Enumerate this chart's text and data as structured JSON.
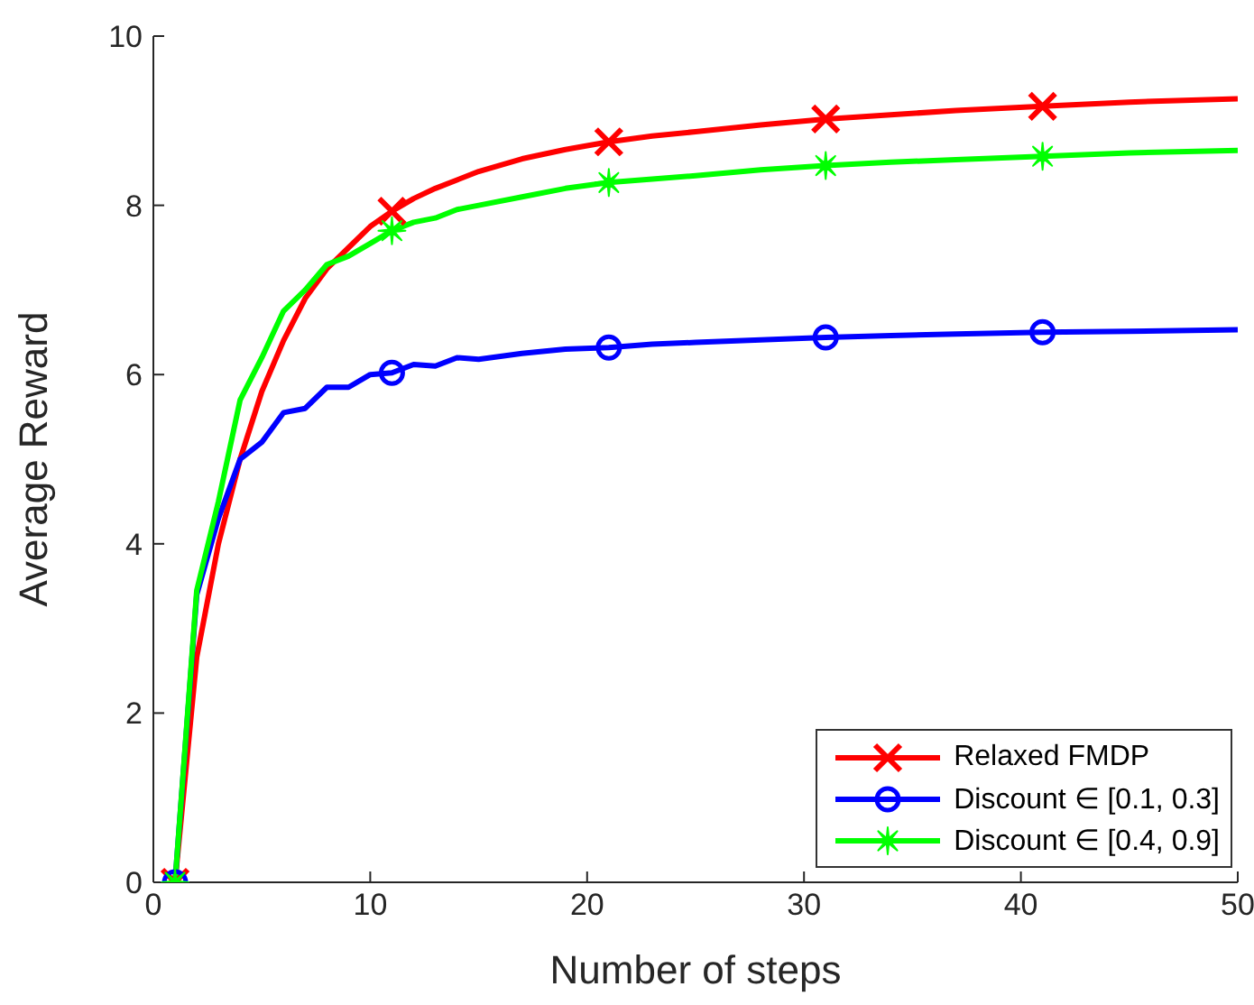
{
  "chart_data": {
    "type": "line",
    "xlabel": "Number of steps",
    "ylabel": "Average Reward",
    "x": [
      1,
      2,
      3,
      4,
      5,
      6,
      7,
      8,
      9,
      10,
      11,
      12,
      13,
      14,
      15,
      17,
      19,
      21,
      23,
      25,
      28,
      31,
      34,
      37,
      41,
      45,
      50
    ],
    "xlim": [
      0,
      50
    ],
    "xticks": [
      0,
      10,
      20,
      30,
      40,
      50
    ],
    "ylim": [
      0,
      10
    ],
    "yticks": [
      0,
      2,
      4,
      6,
      8,
      10
    ],
    "grid": false,
    "legend": "bottom right",
    "series": [
      {
        "name": "Relaxed FMDP",
        "color": "#ff0000",
        "values": [
          0,
          2.66,
          4.0,
          5.0,
          5.8,
          6.4,
          6.9,
          7.25,
          7.5,
          7.75,
          7.93,
          8.08,
          8.2,
          8.3,
          8.4,
          8.55,
          8.66,
          8.75,
          8.82,
          8.87,
          8.95,
          9.02,
          9.07,
          9.12,
          9.17,
          9.22,
          9.26
        ]
      },
      {
        "name": "Discount ∈ [0.1, 0.3]",
        "color": "#0000ff",
        "values": [
          0,
          3.4,
          4.3,
          5.0,
          5.2,
          5.55,
          5.6,
          5.85,
          5.85,
          6.0,
          6.02,
          6.12,
          6.1,
          6.2,
          6.18,
          6.25,
          6.3,
          6.32,
          6.36,
          6.38,
          6.41,
          6.44,
          6.46,
          6.48,
          6.5,
          6.51,
          6.53
        ]
      },
      {
        "name": "Discount ∈ [0.4, 0.9]",
        "color": "#00ff00",
        "values": [
          0,
          3.45,
          4.5,
          5.7,
          6.2,
          6.75,
          7.0,
          7.3,
          7.4,
          7.55,
          7.7,
          7.8,
          7.85,
          7.95,
          8.0,
          8.1,
          8.2,
          8.27,
          8.31,
          8.35,
          8.42,
          8.47,
          8.51,
          8.54,
          8.58,
          8.62,
          8.65
        ]
      },
      {
        "type": "scatter",
        "color": "#ff0000",
        "marker": "cross",
        "x": [
          1,
          11,
          21,
          31,
          41
        ],
        "values": [
          0,
          7.93,
          8.75,
          9.02,
          9.17
        ]
      },
      {
        "type": "scatter",
        "color": "#0000ff",
        "marker": "circle",
        "x": [
          1,
          11,
          21,
          31,
          41
        ],
        "values": [
          0,
          6.02,
          6.32,
          6.44,
          6.5
        ]
      },
      {
        "type": "scatter",
        "color": "#00ff00",
        "marker": "star",
        "x": [
          1,
          11,
          21,
          31,
          41
        ],
        "values": [
          0,
          7.7,
          8.27,
          8.47,
          8.58
        ]
      }
    ]
  }
}
